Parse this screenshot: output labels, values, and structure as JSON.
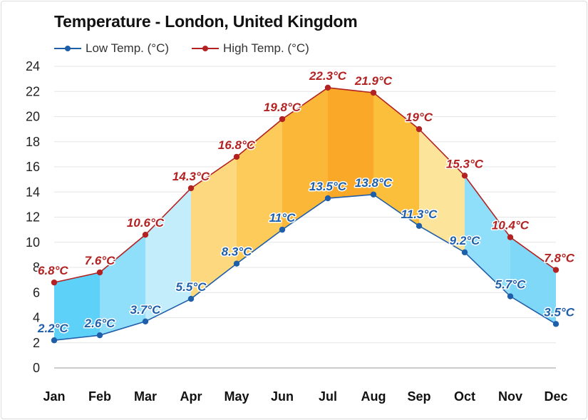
{
  "chart_data": {
    "type": "line",
    "title": "Temperature - London, United Kingdom",
    "categories": [
      "Jan",
      "Feb",
      "Mar",
      "Apr",
      "May",
      "Jun",
      "Jul",
      "Aug",
      "Sep",
      "Oct",
      "Nov",
      "Dec"
    ],
    "series": [
      {
        "name": "Low Temp. (°C)",
        "color": "#1f5ea8",
        "values": [
          2.2,
          2.6,
          3.7,
          5.5,
          8.3,
          11,
          13.5,
          13.8,
          11.3,
          9.2,
          5.7,
          3.5
        ],
        "labels": [
          "2.2°C",
          "2.6°C",
          "3.7°C",
          "5.5°C",
          "8.3°C",
          "11°C",
          "13.5°C",
          "13.8°C",
          "11.3°C",
          "9.2°C",
          "5.7°C",
          "3.5°C"
        ]
      },
      {
        "name": "High Temp. (°C)",
        "color": "#b22222",
        "values": [
          6.8,
          7.6,
          10.6,
          14.3,
          16.8,
          19.8,
          22.3,
          21.9,
          19,
          15.3,
          10.4,
          7.8
        ],
        "labels": [
          "6.8°C",
          "7.6°C",
          "10.6°C",
          "14.3°C",
          "16.8°C",
          "19.8°C",
          "22.3°C",
          "21.9°C",
          "19°C",
          "15.3°C",
          "10.4°C",
          "7.8°C"
        ]
      }
    ],
    "yticks": [
      "0",
      "2",
      "4",
      "6",
      "8",
      "10",
      "12",
      "14",
      "16",
      "18",
      "20",
      "22",
      "24"
    ],
    "ylim": [
      0,
      24
    ],
    "grid": true,
    "legend_placement": "top-left",
    "band_colors": [
      "#5dd1f7",
      "#8fdefa",
      "#c4edfb",
      "#fdd87e",
      "#fccb5a",
      "#fbb838",
      "#f9a828",
      "#fbbf3c",
      "#fde49b",
      "#8fdefa",
      "#7fd8f7",
      "#5dd1f7"
    ]
  }
}
